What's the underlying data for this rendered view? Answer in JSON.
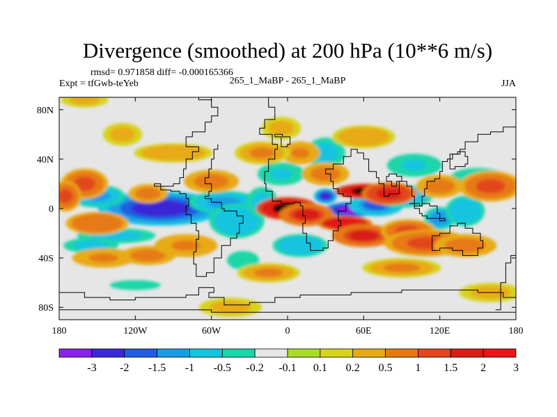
{
  "chart_data": {
    "type": "heatmap",
    "title": "Divergence (smoothed) at 200 hPa (10**6 m/s)",
    "stats_line": "rmsd= 0.971858 diff= -0.000165366",
    "expt_label": "Expt = tfGwb-teYeb",
    "comparison_label": "265_1_MaBP - 265_1_MaBP",
    "season": "JJA",
    "xlim": [
      -180,
      180
    ],
    "ylim": [
      -90,
      90
    ],
    "x_ticks": [
      {
        "value": -180,
        "label": "180"
      },
      {
        "value": -120,
        "label": "120W"
      },
      {
        "value": -60,
        "label": "60W"
      },
      {
        "value": 0,
        "label": "0"
      },
      {
        "value": 60,
        "label": "60E"
      },
      {
        "value": 120,
        "label": "120E"
      },
      {
        "value": 180,
        "label": "180"
      }
    ],
    "y_ticks": [
      {
        "value": 80,
        "label": "80N"
      },
      {
        "value": 40,
        "label": "40N"
      },
      {
        "value": 0,
        "label": "0"
      },
      {
        "value": -40,
        "label": "40S"
      },
      {
        "value": -80,
        "label": "80S"
      }
    ],
    "colorbar": {
      "colors": [
        "#8a1fe6",
        "#3a28d6",
        "#1f5fe0",
        "#1a9be6",
        "#12c4e0",
        "#1ad6a8",
        "#e6e6e6",
        "#a8dc2a",
        "#d8d21e",
        "#e8aa14",
        "#e67a12",
        "#e2461a",
        "#d81e12",
        "#e81616"
      ],
      "labels": [
        "-3",
        "-2",
        "-1.5",
        "-1",
        "-0.5",
        "-0.2",
        "-0.1",
        "0.1",
        "0.2",
        "0.5",
        "1",
        "1.5",
        "2",
        "3"
      ]
    },
    "features": [
      {
        "lon": -85,
        "lat": -2,
        "level": -3.5,
        "slon": 18,
        "slat": 5
      },
      {
        "lon": -100,
        "lat": 0,
        "level": -2.2,
        "slon": 32,
        "slat": 9
      },
      {
        "lon": -50,
        "lat": 5,
        "level": -1.2,
        "slon": 18,
        "slat": 6
      },
      {
        "lon": -40,
        "lat": -10,
        "level": -1.0,
        "slon": 14,
        "slat": 9
      },
      {
        "lon": -20,
        "lat": 5,
        "level": -0.8,
        "slon": 8,
        "slat": 8
      },
      {
        "lon": 30,
        "lat": 10,
        "level": -2.4,
        "slon": 6,
        "slat": 4
      },
      {
        "lon": 50,
        "lat": -1,
        "level": -3.5,
        "slon": 14,
        "slat": 4
      },
      {
        "lon": 70,
        "lat": 3,
        "level": -1.6,
        "slon": 14,
        "slat": 6
      },
      {
        "lon": 90,
        "lat": 10,
        "level": -1.2,
        "slon": 16,
        "slat": 6
      },
      {
        "lon": 120,
        "lat": -8,
        "level": -1.4,
        "slon": 8,
        "slat": 6
      },
      {
        "lon": 140,
        "lat": -2,
        "level": -0.9,
        "slon": 10,
        "slat": 8
      },
      {
        "lon": -150,
        "lat": 10,
        "level": -1.2,
        "slon": 14,
        "slat": 6
      },
      {
        "lon": -135,
        "lat": -22,
        "level": -0.8,
        "slon": 20,
        "slat": 4
      },
      {
        "lon": -155,
        "lat": -30,
        "level": -0.7,
        "slon": 14,
        "slat": 4
      },
      {
        "lon": 10,
        "lat": -30,
        "level": -0.9,
        "slon": 14,
        "slat": 6
      },
      {
        "lon": -5,
        "lat": 28,
        "level": -0.6,
        "slon": 12,
        "slat": 6
      },
      {
        "lon": 30,
        "lat": 45,
        "level": -0.8,
        "slon": 10,
        "slat": 8
      },
      {
        "lon": 100,
        "lat": 35,
        "level": -0.6,
        "slon": 14,
        "slat": 6
      },
      {
        "lon": 150,
        "lat": 25,
        "level": -0.6,
        "slon": 14,
        "slat": 5
      },
      {
        "lon": -35,
        "lat": -42,
        "level": -0.5,
        "slon": 10,
        "slat": 6
      },
      {
        "lon": 0,
        "lat": 0,
        "level": 3.5,
        "slon": 16,
        "slat": 6
      },
      {
        "lon": 15,
        "lat": -5,
        "level": 1.6,
        "slon": 14,
        "slat": 6
      },
      {
        "lon": 62,
        "lat": 14,
        "level": 3.5,
        "slon": 16,
        "slat": 4
      },
      {
        "lon": 80,
        "lat": 12,
        "level": 1.8,
        "slon": 14,
        "slat": 6
      },
      {
        "lon": 45,
        "lat": -12,
        "level": 2.8,
        "slon": 14,
        "slat": 4
      },
      {
        "lon": 60,
        "lat": -22,
        "level": 1.5,
        "slon": 16,
        "slat": 6
      },
      {
        "lon": 95,
        "lat": -18,
        "level": 1.2,
        "slon": 14,
        "slat": 6
      },
      {
        "lon": 110,
        "lat": -28,
        "level": 1.0,
        "slon": 22,
        "slat": 7
      },
      {
        "lon": 140,
        "lat": -30,
        "level": 0.8,
        "slon": 16,
        "slat": 6
      },
      {
        "lon": 160,
        "lat": 18,
        "level": 1.2,
        "slon": 16,
        "slat": 8
      },
      {
        "lon": 120,
        "lat": 18,
        "level": 0.8,
        "slon": 12,
        "slat": 6
      },
      {
        "lon": -160,
        "lat": 20,
        "level": 1.2,
        "slon": 12,
        "slat": 8
      },
      {
        "lon": -175,
        "lat": 10,
        "level": 1.0,
        "slon": 8,
        "slat": 8
      },
      {
        "lon": -150,
        "lat": -12,
        "level": 0.9,
        "slon": 16,
        "slat": 6
      },
      {
        "lon": -145,
        "lat": -40,
        "level": 0.6,
        "slon": 16,
        "slat": 5
      },
      {
        "lon": -110,
        "lat": -38,
        "level": 0.7,
        "slon": 14,
        "slat": 5
      },
      {
        "lon": -80,
        "lat": -30,
        "level": 0.6,
        "slon": 16,
        "slat": 6
      },
      {
        "lon": -110,
        "lat": 12,
        "level": 0.8,
        "slon": 10,
        "slat": 5
      },
      {
        "lon": -60,
        "lat": 22,
        "level": 0.7,
        "slon": 14,
        "slat": 6
      },
      {
        "lon": 30,
        "lat": 28,
        "level": 0.8,
        "slon": 12,
        "slat": 6
      },
      {
        "lon": 10,
        "lat": 45,
        "level": 0.6,
        "slon": 10,
        "slat": 6
      },
      {
        "lon": -20,
        "lat": 45,
        "level": 0.5,
        "slon": 14,
        "slat": 6
      },
      {
        "lon": -90,
        "lat": 45,
        "level": 0.4,
        "slon": 20,
        "slat": 5
      },
      {
        "lon": 60,
        "lat": 58,
        "level": 0.4,
        "slon": 16,
        "slat": 6
      },
      {
        "lon": -15,
        "lat": -52,
        "level": 0.5,
        "slon": 16,
        "slat": 5
      },
      {
        "lon": 90,
        "lat": -48,
        "level": 0.5,
        "slon": 20,
        "slat": 5
      },
      {
        "lon": -5,
        "lat": 65,
        "level": 0.3,
        "slon": 10,
        "slat": 6
      },
      {
        "lon": -130,
        "lat": 60,
        "level": 0.3,
        "slon": 10,
        "slat": 6
      },
      {
        "lon": -160,
        "lat": 88,
        "level": 0.3,
        "slon": 12,
        "slat": 4
      },
      {
        "lon": 160,
        "lat": -68,
        "level": 0.3,
        "slon": 16,
        "slat": 5
      },
      {
        "lon": -45,
        "lat": -80,
        "level": 0.3,
        "slon": 16,
        "slat": 5
      },
      {
        "lon": -120,
        "lat": -62,
        "level": -0.3,
        "slon": 20,
        "slat": 4
      }
    ],
    "coastlines": [
      [
        [
          -80,
          90
        ],
        [
          -70,
          88
        ],
        [
          -60,
          82
        ],
        [
          -55,
          75
        ],
        [
          -60,
          70
        ],
        [
          -65,
          62
        ],
        [
          -75,
          58
        ],
        [
          -80,
          50
        ],
        [
          -70,
          46
        ],
        [
          -75,
          40
        ],
        [
          -80,
          32
        ],
        [
          -82,
          25
        ],
        [
          -85,
          20
        ],
        [
          -90,
          18
        ],
        [
          -100,
          18
        ],
        [
          -105,
          20
        ],
        [
          -100,
          15
        ],
        [
          -92,
          14
        ],
        [
          -85,
          12
        ],
        [
          -80,
          8
        ],
        [
          -78,
          2
        ],
        [
          -80,
          -5
        ],
        [
          -76,
          -12
        ],
        [
          -72,
          -18
        ],
        [
          -70,
          -25
        ],
        [
          -72,
          -35
        ],
        [
          -74,
          -45
        ],
        [
          -72,
          -55
        ],
        [
          -68,
          -55
        ],
        [
          -64,
          -52
        ],
        [
          -58,
          -40
        ],
        [
          -52,
          -30
        ],
        [
          -45,
          -24
        ],
        [
          -40,
          -20
        ],
        [
          -38,
          -12
        ],
        [
          -35,
          -6
        ],
        [
          -40,
          -2
        ],
        [
          -50,
          0
        ],
        [
          -52,
          5
        ],
        [
          -60,
          8
        ],
        [
          -65,
          10
        ],
        [
          -62,
          14
        ],
        [
          -60,
          20
        ],
        [
          -65,
          25
        ],
        [
          -62,
          32
        ],
        [
          -60,
          40
        ],
        [
          -58,
          48
        ],
        [
          -55,
          52
        ]
      ],
      [
        [
          -20,
          90
        ],
        [
          -15,
          82
        ],
        [
          -10,
          72
        ],
        [
          -18,
          65
        ],
        [
          -22,
          60
        ],
        [
          -12,
          52
        ],
        [
          -8,
          48
        ],
        [
          -10,
          40
        ],
        [
          -15,
          30
        ],
        [
          -18,
          20
        ],
        [
          -17,
          14
        ],
        [
          -12,
          6
        ],
        [
          -5,
          4
        ],
        [
          5,
          5
        ],
        [
          10,
          2
        ],
        [
          12,
          -6
        ],
        [
          14,
          -12
        ],
        [
          12,
          -20
        ],
        [
          15,
          -28
        ],
        [
          18,
          -34
        ],
        [
          22,
          -34
        ],
        [
          28,
          -32
        ],
        [
          32,
          -26
        ],
        [
          36,
          -18
        ],
        [
          40,
          -14
        ],
        [
          42,
          -10
        ],
        [
          40,
          -2
        ],
        [
          46,
          4
        ],
        [
          50,
          10
        ],
        [
          44,
          12
        ],
        [
          40,
          16
        ],
        [
          36,
          22
        ],
        [
          34,
          28
        ],
        [
          30,
          32
        ],
        [
          36,
          36
        ],
        [
          44,
          42
        ],
        [
          50,
          48
        ],
        [
          55,
          45
        ],
        [
          60,
          40
        ],
        [
          64,
          30
        ],
        [
          70,
          25
        ],
        [
          72,
          20
        ],
        [
          76,
          10
        ],
        [
          80,
          12
        ],
        [
          88,
          22
        ],
        [
          94,
          18
        ],
        [
          98,
          10
        ],
        [
          100,
          4
        ],
        [
          104,
          2
        ],
        [
          106,
          10
        ],
        [
          108,
          16
        ],
        [
          110,
          22
        ],
        [
          116,
          24
        ],
        [
          120,
          30
        ],
        [
          122,
          38
        ],
        [
          126,
          40
        ],
        [
          130,
          44
        ],
        [
          136,
          48
        ],
        [
          140,
          54
        ],
        [
          150,
          60
        ],
        [
          160,
          62
        ],
        [
          170,
          66
        ],
        [
          180,
          68
        ]
      ],
      [
        [
          114,
          -22
        ],
        [
          120,
          -20
        ],
        [
          128,
          -14
        ],
        [
          134,
          -12
        ],
        [
          140,
          -16
        ],
        [
          146,
          -20
        ],
        [
          152,
          -26
        ],
        [
          154,
          -32
        ],
        [
          150,
          -38
        ],
        [
          144,
          -38
        ],
        [
          138,
          -34
        ],
        [
          130,
          -32
        ],
        [
          120,
          -34
        ],
        [
          114,
          -30
        ],
        [
          114,
          -22
        ]
      ],
      [
        [
          96,
          4
        ],
        [
          100,
          0
        ],
        [
          104,
          -4
        ],
        [
          106,
          -6
        ],
        [
          110,
          -8
        ],
        [
          118,
          -8
        ],
        [
          124,
          -10
        ],
        [
          120,
          -4
        ],
        [
          118,
          2
        ],
        [
          112,
          4
        ],
        [
          106,
          2
        ],
        [
          100,
          4
        ],
        [
          96,
          4
        ]
      ],
      [
        [
          -180,
          -68
        ],
        [
          -160,
          -72
        ],
        [
          -140,
          -74
        ],
        [
          -120,
          -72
        ],
        [
          -100,
          -72
        ],
        [
          -80,
          -70
        ],
        [
          -70,
          -64
        ],
        [
          -60,
          -64
        ],
        [
          -58,
          -68
        ],
        [
          -62,
          -72
        ],
        [
          -50,
          -78
        ],
        [
          -30,
          -76
        ],
        [
          -10,
          -72
        ],
        [
          10,
          -70
        ],
        [
          30,
          -70
        ],
        [
          50,
          -68
        ],
        [
          70,
          -68
        ],
        [
          90,
          -66
        ],
        [
          110,
          -66
        ],
        [
          130,
          -66
        ],
        [
          150,
          -68
        ],
        [
          170,
          -72
        ],
        [
          180,
          -74
        ]
      ],
      [
        [
          -180,
          -82
        ],
        [
          -60,
          -84
        ],
        [
          0,
          -84
        ],
        [
          60,
          -84
        ],
        [
          120,
          -84
        ],
        [
          180,
          -84
        ]
      ],
      [
        [
          164,
          -82
        ],
        [
          168,
          -60
        ],
        [
          172,
          -44
        ],
        [
          176,
          -38
        ],
        [
          180,
          -37
        ]
      ],
      [
        [
          -10,
          58
        ],
        [
          -5,
          50
        ],
        [
          0,
          52
        ],
        [
          2,
          58
        ],
        [
          -4,
          60
        ],
        [
          -10,
          58
        ]
      ],
      [
        [
          128,
          32
        ],
        [
          132,
          34
        ],
        [
          140,
          36
        ],
        [
          142,
          42
        ],
        [
          140,
          46
        ],
        [
          134,
          44
        ],
        [
          128,
          38
        ],
        [
          128,
          32
        ]
      ],
      [
        [
          82,
          18
        ],
        [
          86,
          22
        ],
        [
          90,
          26
        ],
        [
          86,
          28
        ],
        [
          80,
          26
        ],
        [
          78,
          22
        ],
        [
          82,
          18
        ]
      ]
    ]
  }
}
